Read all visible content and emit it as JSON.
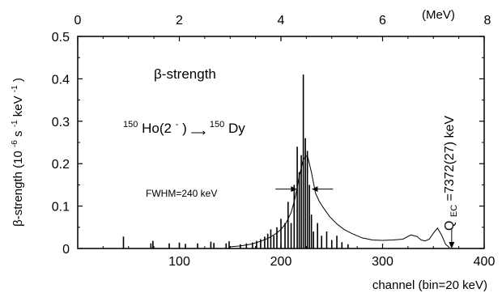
{
  "chart_data": {
    "type": "bar",
    "title": "β-strength",
    "reaction": {
      "parent": "Ho(2",
      "parent_mass": "150",
      "parent_charge": "-",
      "parent_close": ")",
      "arrow": "⟶",
      "daughter": "Dy",
      "daughter_mass": "150"
    },
    "xlabel": "channel (bin=20 keV)",
    "xlim": [
      0,
      400
    ],
    "xticks": [
      "100",
      "200",
      "300",
      "400"
    ],
    "x2label": "(MeV)",
    "x2lim": [
      0,
      8
    ],
    "x2ticks": [
      "0",
      "2",
      "4",
      "6",
      "8"
    ],
    "ylabel_main": "β-strength (10",
    "ylabel_exp1": "-6",
    "ylabel_mid": " s",
    "ylabel_exp2": "-1",
    "ylabel_mid2": "keV",
    "ylabel_exp3": "-1",
    "ylabel_close": ")",
    "ylim": [
      0,
      0.5
    ],
    "yticks": [
      "0",
      "0.1",
      "0.2",
      "0.3",
      "0.4",
      "0.5"
    ],
    "fwhm_label": "FWHM=240 keV",
    "qec_label_q": "Q",
    "qec_label_sub": "EC",
    "qec_label_val": "=7372(27) keV",
    "qec_channel": 368,
    "fwhm_range": [
      217,
      229
    ],
    "grid": false,
    "series": [
      {
        "style": "histogram",
        "x": [
          45,
          72,
          74,
          90,
          100,
          106,
          118,
          131,
          134,
          146,
          149,
          160,
          166,
          172,
          176,
          180,
          184,
          187,
          190,
          193,
          196,
          200,
          204,
          207,
          210,
          213,
          216,
          218,
          220,
          222,
          224,
          226,
          228,
          230,
          232,
          236,
          240,
          245,
          250,
          255,
          260,
          266
        ],
        "y": [
          0.028,
          0.012,
          0.018,
          0.012,
          0.014,
          0.011,
          0.012,
          0.016,
          0.013,
          0.012,
          0.017,
          0.01,
          0.012,
          0.014,
          0.018,
          0.022,
          0.028,
          0.035,
          0.045,
          0.03,
          0.05,
          0.07,
          0.06,
          0.11,
          0.06,
          0.15,
          0.24,
          0.18,
          0.22,
          0.41,
          0.26,
          0.23,
          0.15,
          0.08,
          0.04,
          0.06,
          0.03,
          0.04,
          0.02,
          0.03,
          0.015,
          0.01
        ]
      },
      {
        "style": "smoothed",
        "x": [
          150,
          160,
          170,
          180,
          188,
          195,
          200,
          205,
          210,
          214,
          218,
          222,
          226,
          230,
          234,
          238,
          242,
          248,
          255,
          262,
          270,
          280,
          290,
          300,
          310,
          320,
          328,
          334,
          338,
          342,
          346,
          350,
          354,
          358,
          362,
          366
        ],
        "y": [
          0.004,
          0.006,
          0.01,
          0.017,
          0.025,
          0.035,
          0.045,
          0.06,
          0.085,
          0.12,
          0.17,
          0.21,
          0.22,
          0.18,
          0.13,
          0.11,
          0.095,
          0.075,
          0.058,
          0.045,
          0.035,
          0.025,
          0.02,
          0.019,
          0.02,
          0.022,
          0.032,
          0.028,
          0.02,
          0.018,
          0.022,
          0.036,
          0.048,
          0.032,
          0.01,
          0.002
        ]
      }
    ]
  }
}
